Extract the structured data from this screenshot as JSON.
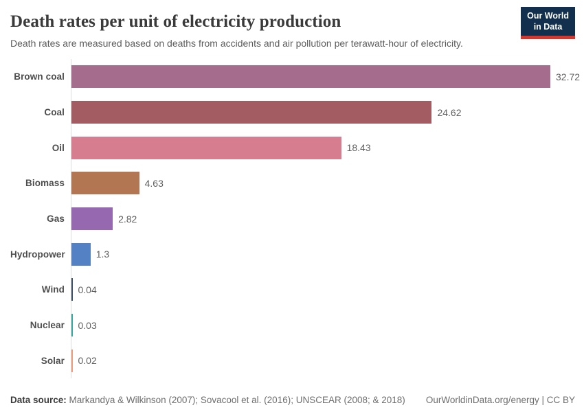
{
  "header": {
    "title": "Death rates per unit of electricity production",
    "subtitle": "Death rates are measured based on deaths from accidents and air pollution per terawatt-hour of electricity.",
    "logo": {
      "line1": "Our World",
      "line2": "in Data",
      "background_color": "#12304e",
      "accent_color": "#d3382e"
    }
  },
  "chart_data": {
    "type": "bar",
    "orientation": "horizontal",
    "title": "Death rates per unit of electricity production",
    "xlabel": "",
    "ylabel": "",
    "xlim": [
      0,
      32.72
    ],
    "grid": false,
    "legend": false,
    "categories": [
      "Brown coal",
      "Coal",
      "Oil",
      "Biomass",
      "Gas",
      "Hydropower",
      "Wind",
      "Nuclear",
      "Solar"
    ],
    "values": [
      32.72,
      24.62,
      18.43,
      4.63,
      2.82,
      1.3,
      0.04,
      0.03,
      0.02
    ],
    "value_labels": [
      "32.72",
      "24.62",
      "18.43",
      "4.63",
      "2.82",
      "1.3",
      "0.04",
      "0.03",
      "0.02"
    ],
    "bar_colors": [
      "#a66c8e",
      "#a45c63",
      "#d67d8f",
      "#b27652",
      "#9668b0",
      "#5381c4",
      "#3d5066",
      "#38a8a2",
      "#f09c7d"
    ],
    "axis_line_color": "#dcdcdc"
  },
  "footer": {
    "source_label": "Data source:",
    "source_text": "Markandya & Wilkinson (2007); Sovacool et al. (2016); UNSCEAR (2008; & 2018)",
    "right_text": "OurWorldinData.org/energy | CC BY"
  }
}
